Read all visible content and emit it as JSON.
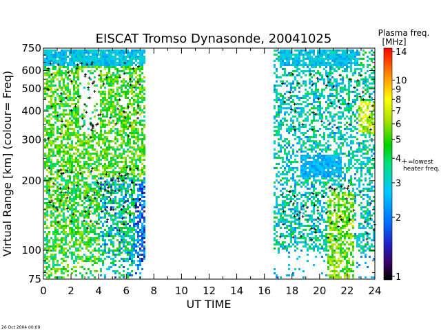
{
  "chart_data": {
    "type": "heatmap",
    "title": "EISCAT Tromso Dynasonde,  20041025",
    "xlabel": "UT TIME",
    "ylabel": "Virtual Range [km]   (colour= Freq)",
    "x_ticks": [
      "0",
      "2",
      "4",
      "6",
      "8",
      "10",
      "12",
      "14",
      "16",
      "18",
      "20",
      "22",
      "24"
    ],
    "xlim": [
      0,
      24
    ],
    "y_ticks": [
      "75",
      "100",
      "200",
      "300",
      "400",
      "500",
      "600",
      "750"
    ],
    "y_tick_values": [
      75,
      100,
      200,
      300,
      400,
      500,
      600,
      750
    ],
    "ylim": [
      75,
      750
    ],
    "y_scale": "log",
    "colorbar": {
      "title_line1": "Plasma freq.",
      "title_line2": "[MHz]",
      "ticks": [
        "1",
        "2",
        "3",
        "4",
        "5",
        "6",
        "7",
        "8",
        "9",
        "10",
        "14"
      ],
      "tick_values": [
        1,
        2,
        3,
        4,
        5,
        6,
        7,
        8,
        9,
        10,
        14
      ],
      "range": [
        1,
        14
      ],
      "marker_symbol": "+",
      "marker_label_line1": "=lowest",
      "marker_label_line2": "heater freq."
    },
    "data_blocks": [
      {
        "x0": 0.0,
        "x1": 7.3,
        "r0": 80,
        "r1": 750
      },
      {
        "x0": 16.6,
        "x1": 24.0,
        "r0": 80,
        "r1": 750
      }
    ]
  },
  "timestamp": "26 Oct 2004 00:09"
}
